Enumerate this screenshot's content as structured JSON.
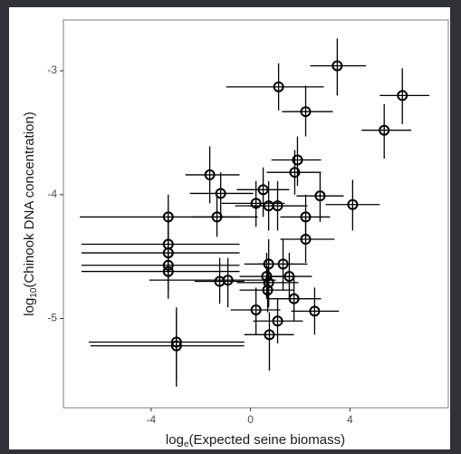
{
  "chart_data": {
    "type": "scatter",
    "x_label": {
      "prefix": "log",
      "subscript": "e",
      "text": "(Expected seine biomass)"
    },
    "y_label": {
      "prefix": "log",
      "subscript": "10",
      "text": "(Chinook DNA concentration)"
    },
    "xlim": [
      -7.53,
      7.96
    ],
    "ylim": [
      -5.72,
      -2.59
    ],
    "xticks": [
      -4,
      0,
      4
    ],
    "yticks": [
      -3,
      -4,
      -5
    ],
    "grid": false,
    "color": "#000000",
    "x": [
      3.49,
      1.13,
      6.11,
      2.22,
      5.38,
      1.89,
      1.78,
      -1.64,
      0.51,
      2.8,
      -1.2,
      4.11,
      0.22,
      0.73,
      1.09,
      2.22,
      -3.31,
      -1.35,
      2.22,
      -3.31,
      -3.31,
      -3.31,
      -3.31,
      0.73,
      1.31,
      1.56,
      0.65,
      -0.91,
      -1.24,
      0.73,
      0.69,
      1.75,
      0.22,
      2.58,
      1.09,
      0.76,
      -2.98,
      -2.98
    ],
    "xmin": [
      2.4,
      -0.98,
      5.2,
      1.27,
      4.47,
      0.84,
      0.65,
      -2.62,
      -0.55,
      1.85,
      -2.44,
      3.02,
      -1.16,
      -0.62,
      -0.07,
      1.2,
      -6.87,
      -2.36,
      1.2,
      -6.8,
      -6.8,
      -6.8,
      -6.8,
      -0.25,
      0.29,
      0.65,
      -0.44,
      -4.07,
      -2.25,
      -0.55,
      -0.44,
      0.65,
      -0.8,
      1.64,
      0.11,
      -0.25,
      -6.51,
      -6.44
    ],
    "xmax": [
      4.65,
      2.95,
      7.2,
      3.31,
      6.47,
      2.84,
      2.84,
      -0.44,
      1.56,
      3.75,
      0.11,
      5.2,
      1.38,
      2.11,
      2.29,
      3.2,
      0.29,
      -0.44,
      3.38,
      -0.44,
      -0.44,
      -0.44,
      -0.44,
      1.75,
      2.29,
      2.47,
      1.75,
      1.02,
      -0.25,
      1.93,
      1.75,
      2.84,
      1.2,
      3.56,
      2.11,
      1.75,
      -0.25,
      -0.25
    ],
    "y": [
      -2.96,
      -3.13,
      -3.2,
      -3.33,
      -3.48,
      -3.72,
      -3.82,
      -3.84,
      -3.96,
      -4.01,
      -3.99,
      -4.08,
      -4.07,
      -4.09,
      -4.09,
      -4.18,
      -4.18,
      -4.18,
      -4.36,
      -4.4,
      -4.47,
      -4.57,
      -4.62,
      -4.56,
      -4.56,
      -4.66,
      -4.66,
      -4.69,
      -4.7,
      -4.71,
      -4.77,
      -4.84,
      -4.93,
      -4.94,
      -5.02,
      -5.13,
      -5.19,
      -5.22
    ],
    "ymin": [
      -3.2,
      -3.32,
      -3.43,
      -3.53,
      -3.71,
      -3.93,
      -4.0,
      -4.07,
      -4.18,
      -4.22,
      -4.2,
      -4.29,
      -4.26,
      -4.29,
      -4.29,
      -4.36,
      -4.36,
      -4.34,
      -4.55,
      -4.62,
      -4.66,
      -4.77,
      -4.84,
      -4.77,
      -4.77,
      -4.84,
      -4.84,
      -4.91,
      -4.88,
      -4.91,
      -4.95,
      -5.02,
      -5.13,
      -5.13,
      -5.2,
      -5.42,
      -5.5,
      -5.55
    ],
    "ymax": [
      -2.74,
      -2.94,
      -2.98,
      -3.12,
      -3.27,
      -3.53,
      -3.64,
      -3.61,
      -3.78,
      -3.82,
      -3.82,
      -3.88,
      -3.89,
      -3.89,
      -3.89,
      -4.0,
      -4.0,
      -4.0,
      -4.18,
      -4.18,
      -4.26,
      -4.36,
      -4.44,
      -4.36,
      -4.36,
      -4.47,
      -4.47,
      -4.51,
      -4.51,
      -4.51,
      -4.58,
      -4.66,
      -4.75,
      -4.75,
      -4.84,
      -4.95,
      -4.91,
      -4.95
    ]
  }
}
